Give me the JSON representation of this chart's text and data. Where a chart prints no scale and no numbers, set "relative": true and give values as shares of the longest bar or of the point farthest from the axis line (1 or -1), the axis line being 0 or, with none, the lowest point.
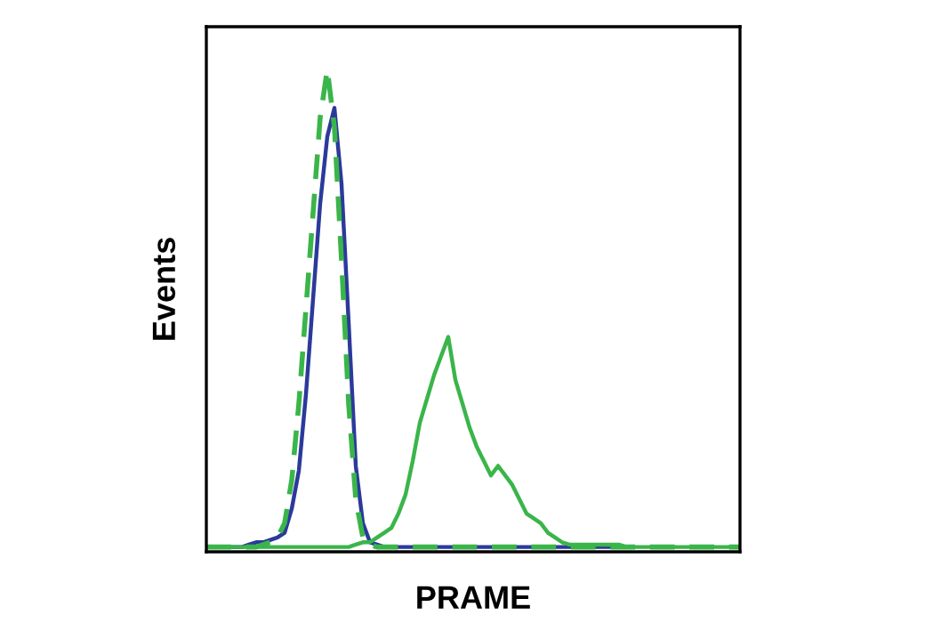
{
  "chart_data": {
    "type": "line",
    "relative": true,
    "xlabel": "PRAME",
    "ylabel": "Events",
    "categories": [
      null,
      null,
      null,
      null,
      null,
      null,
      null,
      null,
      null,
      null,
      null,
      null,
      null,
      null,
      null,
      null,
      null,
      null,
      null,
      null,
      null,
      null,
      null,
      null,
      null,
      null,
      null,
      null,
      null,
      null,
      null,
      null,
      null,
      null,
      null,
      null,
      null,
      null,
      null,
      null,
      null,
      null,
      null,
      null,
      null,
      null,
      null,
      null,
      null,
      null,
      null,
      null,
      null,
      null,
      null,
      null,
      null,
      null,
      null,
      null,
      null,
      null,
      null,
      null,
      null,
      null,
      null,
      null,
      null,
      null,
      null,
      null,
      null,
      null,
      null,
      null
    ],
    "series": [
      {
        "color": "#2b3a9a",
        "line_style": "solid",
        "values": [
          null,
          null,
          null,
          0,
          0,
          0,
          0.005,
          0.01,
          0.01,
          0.015,
          0.02,
          0.03,
          0.08,
          0.16,
          0.32,
          0.52,
          0.72,
          0.86,
          0.92,
          0.76,
          0.47,
          0.17,
          0.05,
          0.01,
          0.005,
          0,
          0,
          0,
          0,
          0,
          0,
          0,
          0,
          0,
          0,
          0,
          0,
          0,
          0,
          0,
          0,
          0,
          0,
          0,
          0,
          0,
          0,
          0,
          0,
          0,
          0,
          0,
          0,
          0,
          0,
          0,
          0,
          0,
          0,
          null,
          null,
          null,
          null,
          null,
          null,
          null,
          null,
          null,
          null,
          null,
          null,
          null,
          null,
          null,
          null,
          null
        ]
      },
      {
        "color": "#3ab54a",
        "line_style": "dashed",
        "values": [
          0,
          0,
          0,
          0,
          0,
          0,
          0,
          0,
          0.005,
          0.01,
          0.02,
          0.05,
          0.14,
          0.3,
          0.5,
          0.7,
          0.9,
          1.0,
          0.88,
          0.6,
          0.3,
          0.1,
          0.02,
          0.005,
          0,
          0,
          0,
          0,
          0,
          0,
          0,
          0,
          0,
          0,
          0,
          0,
          0,
          0,
          0,
          0,
          0,
          0,
          0,
          0,
          0,
          0,
          0,
          0,
          0,
          0,
          0,
          0,
          0,
          0,
          0,
          0,
          0,
          0,
          0,
          0,
          0,
          0,
          0,
          0,
          0,
          0,
          0,
          0,
          0,
          0,
          0,
          0,
          0,
          0,
          0,
          0
        ]
      },
      {
        "color": "#3ab54a",
        "line_style": "solid",
        "values": [
          0,
          0,
          0,
          0,
          0,
          0,
          0,
          0,
          0,
          0,
          0,
          0,
          0,
          0,
          0,
          0,
          0,
          0,
          0,
          0,
          0,
          0.005,
          0.01,
          0.01,
          0.02,
          0.03,
          0.04,
          0.07,
          0.11,
          0.18,
          0.26,
          0.31,
          0.36,
          0.4,
          0.44,
          0.35,
          0.3,
          0.25,
          0.21,
          0.18,
          0.15,
          0.17,
          0.15,
          0.13,
          0.1,
          0.07,
          0.06,
          0.05,
          0.03,
          0.02,
          0.01,
          0.005,
          0.005,
          0.005,
          0.005,
          0.005,
          0.005,
          0.005,
          0.005,
          0,
          0,
          0,
          0,
          0,
          0,
          0,
          0,
          0,
          0,
          0,
          0,
          0,
          0,
          0,
          0,
          0
        ]
      }
    ]
  }
}
